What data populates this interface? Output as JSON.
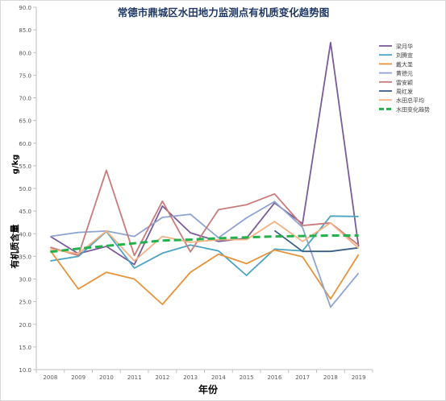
{
  "chart_data": {
    "type": "line",
    "title": "常德市鼎城区水田地力监测点有机质变化趋势图",
    "xlabel": "年份",
    "ylabel": "有机质含量",
    "yunit": "g/kg",
    "categories": [
      "2008",
      "2009",
      "2010",
      "2011",
      "2012",
      "2013",
      "2014",
      "2015",
      "2016",
      "2017",
      "2018",
      "2019"
    ],
    "ylim": [
      10.0,
      90.0
    ],
    "ytick_step": 5,
    "ytick_labels": [
      "10.0",
      "15.0",
      "20.0",
      "25.0",
      "30.0",
      "35.0",
      "40.0",
      "45.0",
      "50.0",
      "55.0",
      "60.0",
      "65.0",
      "70.0",
      "75.0",
      "80.0",
      "85.0",
      "90.0"
    ],
    "grid": false,
    "legend_position": "right",
    "series": [
      {
        "name": "梁月华",
        "color": "#7a5c99",
        "dashed": false,
        "values": [
          39.4,
          35.6,
          37.2,
          33.2,
          46.1,
          40.2,
          38.3,
          39.0,
          46.8,
          42.2,
          82.2,
          37.2
        ]
      },
      {
        "name": "刘腾宣",
        "color": "#4ba3c3",
        "dashed": false,
        "values": [
          34.0,
          35.0,
          40.5,
          32.4,
          35.7,
          37.5,
          36.2,
          30.8,
          36.6,
          36.2,
          43.9,
          43.8
        ]
      },
      {
        "name": "戴大圣",
        "color": "#e6933b",
        "dashed": false,
        "values": [
          36.3,
          27.8,
          31.5,
          30.0,
          24.4,
          31.5,
          35.5,
          33.4,
          36.4,
          34.9,
          25.6,
          35.4
        ]
      },
      {
        "name": "黄德元",
        "color": "#8fa3d1",
        "dashed": false,
        "values": [
          39.4,
          40.3,
          40.6,
          39.4,
          43.6,
          44.3,
          39.1,
          43.5,
          47.1,
          41.4,
          23.8,
          31.3
        ]
      },
      {
        "name": "雷安颖",
        "color": "#c97b7b",
        "dashed": false,
        "values": [
          37.0,
          35.2,
          54.0,
          35.2,
          47.2,
          36.0,
          45.3,
          46.4,
          48.8,
          41.8,
          42.4,
          37.5
        ]
      },
      {
        "name": "周红发",
        "color": "#3b5f85",
        "dashed": false,
        "values": [
          null,
          null,
          null,
          null,
          null,
          null,
          null,
          null,
          40.7,
          36.1,
          36.1,
          36.9
        ]
      },
      {
        "name": "水田总平均",
        "color": "#f4b183",
        "dashed": false,
        "values": [
          36.6,
          35.6,
          40.6,
          34.0,
          39.4,
          38.1,
          38.7,
          38.7,
          42.7,
          38.3,
          42.4,
          36.8
        ]
      },
      {
        "name": "水田变化趋势",
        "color": "#22b14c",
        "dashed": true,
        "values": [
          36.0,
          36.7,
          37.3,
          37.9,
          38.5,
          38.7,
          39.0,
          39.2,
          39.4,
          39.5,
          39.6,
          39.6
        ]
      }
    ]
  }
}
